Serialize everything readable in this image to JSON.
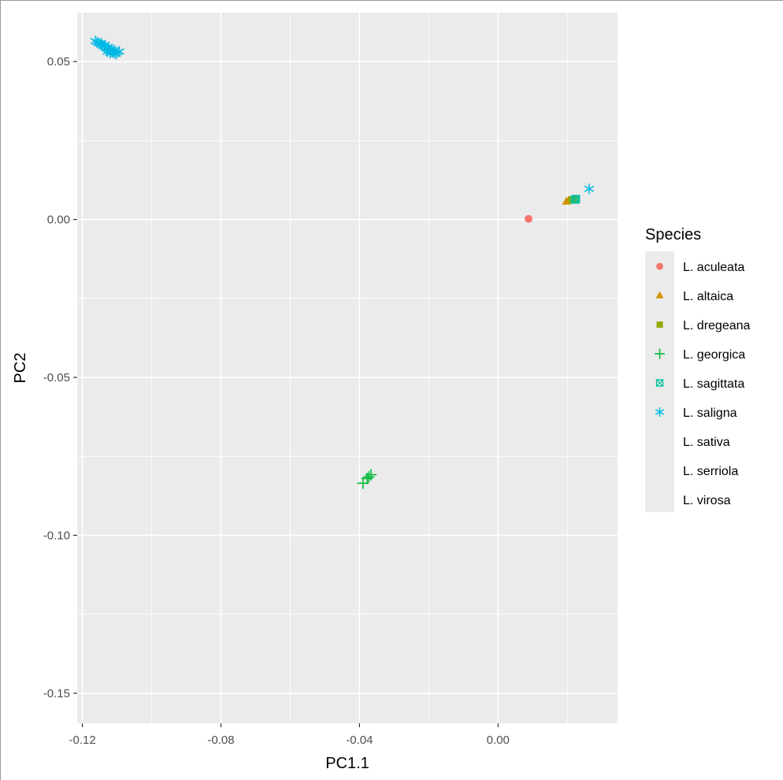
{
  "chart_data": {
    "type": "scatter",
    "xlabel": "PC1.1",
    "ylabel": "PC2",
    "xlim": [
      -0.1215,
      0.0345
    ],
    "ylim": [
      -0.1595,
      0.0655
    ],
    "x_ticks": [
      -0.12,
      -0.08,
      -0.04,
      0.0
    ],
    "x_tick_labels": [
      "-0.12",
      "-0.08",
      "-0.04",
      "0.00"
    ],
    "y_ticks": [
      0.05,
      0.0,
      -0.05,
      -0.1,
      -0.15
    ],
    "y_tick_labels": [
      "0.05",
      "0.00",
      "-0.05",
      "-0.10",
      "-0.15"
    ],
    "grid": true,
    "legend": {
      "title": "Species",
      "position": "right",
      "entries": [
        {
          "label": "L. aculeata",
          "shape": "circle",
          "color": "#F8766D"
        },
        {
          "label": "L. altaica",
          "shape": "triangle",
          "color": "#D39200"
        },
        {
          "label": "L. dregeana",
          "shape": "square",
          "color": "#93AA00"
        },
        {
          "label": "L. georgica",
          "shape": "plus",
          "color": "#00BA38"
        },
        {
          "label": "L. sagittata",
          "shape": "boxcross",
          "color": "#00C19F"
        },
        {
          "label": "L. saligna",
          "shape": "asterisk",
          "color": "#00B9E3"
        },
        {
          "label": "L. sativa",
          "shape": "none",
          "color": "#619CFF"
        },
        {
          "label": "L. serriola",
          "shape": "none",
          "color": "#DB72FB"
        },
        {
          "label": "L. virosa",
          "shape": "none",
          "color": "#FF61C3"
        }
      ]
    },
    "series": [
      {
        "name": "L. aculeata",
        "shape": "circle",
        "color": "#F8766D",
        "points": [
          [
            0.0088,
            0.0002
          ]
        ]
      },
      {
        "name": "L. altaica",
        "shape": "triangle",
        "color": "#D39200",
        "points": [
          [
            0.0197,
            0.0057
          ],
          [
            0.0203,
            0.006
          ],
          [
            0.021,
            0.0062
          ]
        ]
      },
      {
        "name": "L. dregeana",
        "shape": "square",
        "color": "#93AA00",
        "points": [
          [
            0.0212,
            0.0062
          ],
          [
            0.022,
            0.0064
          ]
        ]
      },
      {
        "name": "L. georgica",
        "shape": "plus",
        "color": "#00BA38",
        "points": [
          [
            -0.039,
            -0.0835
          ],
          [
            -0.0378,
            -0.082
          ],
          [
            -0.0373,
            -0.0815
          ],
          [
            -0.0367,
            -0.0808
          ]
        ]
      },
      {
        "name": "L. sagittata",
        "shape": "boxcross",
        "color": "#00C19F",
        "points": [
          [
            0.0222,
            0.0063
          ],
          [
            0.0225,
            0.0065
          ]
        ]
      },
      {
        "name": "L. saligna",
        "shape": "asterisk",
        "color": "#00B9E3",
        "points": [
          [
            -0.1163,
            0.0565
          ],
          [
            -0.1158,
            0.0561
          ],
          [
            -0.1152,
            0.0558
          ],
          [
            -0.1147,
            0.0554
          ],
          [
            -0.1142,
            0.055
          ],
          [
            -0.1137,
            0.0547
          ],
          [
            -0.1132,
            0.0543
          ],
          [
            -0.1128,
            0.054
          ],
          [
            -0.1123,
            0.0537
          ],
          [
            -0.1118,
            0.0533
          ],
          [
            -0.1113,
            0.053
          ],
          [
            -0.1108,
            0.0527
          ],
          [
            -0.1103,
            0.0524
          ],
          [
            -0.1098,
            0.0529
          ],
          [
            -0.1093,
            0.0532
          ],
          [
            -0.1145,
            0.0558
          ],
          [
            -0.1135,
            0.0552
          ],
          [
            -0.1125,
            0.0546
          ],
          [
            -0.1115,
            0.0539
          ],
          [
            -0.112,
            0.0527
          ],
          [
            -0.1128,
            0.0531
          ],
          [
            -0.1108,
            0.0536
          ],
          [
            0.0263,
            0.0097
          ]
        ]
      }
    ]
  }
}
